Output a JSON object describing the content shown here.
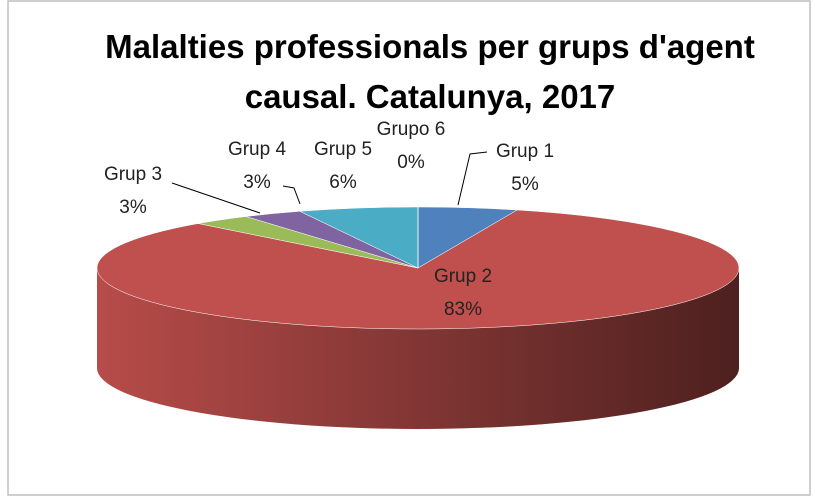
{
  "chart_data": {
    "type": "pie",
    "3d": true,
    "title": "Malalties professionals per grups d'agent causal. Catalunya, 2017",
    "categories": [
      "Grup 1",
      "Grup 2",
      "Grup 3",
      "Grup 4",
      "Grup 5",
      "Grupo 6"
    ],
    "values": [
      5,
      83,
      3,
      3,
      6,
      0
    ],
    "value_labels": [
      "5%",
      "83%",
      "3%",
      "3%",
      "6%",
      "0%"
    ],
    "colors": [
      "#4f81bd",
      "#c0504d",
      "#9bbb59",
      "#8064a2",
      "#4bacc6",
      "#f79646"
    ]
  }
}
